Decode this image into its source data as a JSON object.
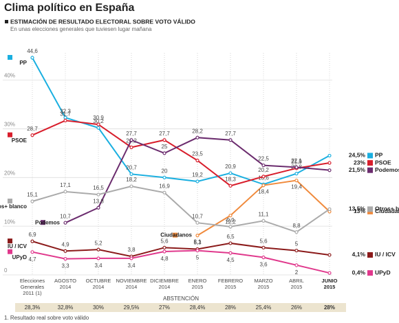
{
  "chart_data": {
    "type": "line",
    "title": "Clima político en España",
    "subtitle": "ESTIMACIÓN DE RESULTADO ELECTORAL SOBRE VOTO VÁLIDO",
    "note": "En unas elecciones generales que tuviesen lugar mañana",
    "footnote": "1. Resultado real sobre voto válido",
    "categories": [
      "Elecciones\nGenerales\n2011 (1)",
      "AGOSTO\n2014",
      "OCTUBRE\n2014",
      "NOVIEMBRE\n2014",
      "DICIEMBRE\n2014",
      "ENERO\n2015",
      "FEBRERO\n2015",
      "MARZO\n2015",
      "ABRIL\n2015",
      "JUNIO\n2015"
    ],
    "ylim": [
      0,
      47
    ],
    "yticks": [
      0,
      {
        "value": 10,
        "label": "10%"
      },
      {
        "value": 20,
        "label": "20%"
      },
      {
        "value": 30,
        "label": "30%"
      },
      {
        "value": 40,
        "label": "40%"
      }
    ],
    "grid": true,
    "series": [
      {
        "name": "PP",
        "color": "#1aafe0",
        "values": [
          44.6,
          32.3,
          30.2,
          20.7,
          20,
          19.2,
          20.9,
          18.6,
          20.8,
          24.5
        ],
        "value_labels": [
          "44,6",
          "32,3",
          "30,2",
          "20,7",
          "20",
          "19,2",
          "20,9",
          "18,6",
          "20,8",
          "24,5%"
        ]
      },
      {
        "name": "PSOE",
        "color": "#d81e2c",
        "values": [
          28.7,
          31.7,
          30.9,
          26.2,
          27.7,
          23.5,
          18.3,
          20.2,
          21.9,
          23
        ],
        "value_labels": [
          "28,7",
          "31,7",
          "30,9",
          "26,2",
          "27,7",
          "23,5",
          "18,3",
          "20,2",
          "21,9",
          "23%"
        ]
      },
      {
        "name": "Podemos",
        "color": "#6b2c6e",
        "values": [
          null,
          10.7,
          13.8,
          27.7,
          25,
          28.2,
          27.7,
          22.5,
          22.1,
          21.5
        ],
        "value_labels": [
          null,
          "10,7",
          "13,8",
          "27,7",
          "25",
          "28,2",
          "27,7",
          "22,5",
          "22,1",
          "21,5%"
        ]
      },
      {
        "name": "Ciudadanos",
        "color": "#f08a3c",
        "values": [
          null,
          null,
          null,
          null,
          null,
          8.1,
          12.2,
          18.4,
          19.4,
          13
        ],
        "value_labels": [
          null,
          null,
          null,
          null,
          null,
          "8,1",
          "12,2",
          "18,4",
          "19,4",
          "13%"
        ]
      },
      {
        "name": "Otros+ blanco",
        "color": "#aaaaaa",
        "values": [
          15.1,
          17.1,
          16.5,
          18.2,
          16.9,
          10.7,
          9.9,
          11.1,
          8.8,
          13.5
        ],
        "value_labels": [
          "15,1",
          "17,1",
          "16,5",
          "18,2",
          "16,9",
          "10,7",
          "9,9",
          "11,1",
          "8,8",
          "13,5%"
        ]
      },
      {
        "name": "IU / ICV",
        "color": "#8b1a1a",
        "values": [
          6.9,
          4.9,
          5.2,
          3.8,
          5.6,
          5.3,
          6.5,
          5.6,
          5,
          4.1
        ],
        "value_labels": [
          "6,9",
          "4,9",
          "5,2",
          "3,8",
          "5,6",
          "5,3",
          "6,5",
          "5,6",
          "5",
          "4,1%"
        ]
      },
      {
        "name": "UPyD",
        "color": "#e0388c",
        "values": [
          4.7,
          3.3,
          3.4,
          3.4,
          4.8,
          5,
          4.5,
          3.6,
          2,
          0.4
        ],
        "value_labels": [
          "4,7",
          "3,3",
          "3,4",
          "3,4",
          "4,8",
          "5",
          "4,5",
          "3,6",
          "2",
          "0,4%"
        ]
      }
    ],
    "abstention": {
      "label": "ABSTENCIÓN",
      "values": [
        28.3,
        32.8,
        30,
        29.5,
        27,
        28.4,
        28,
        25.4,
        26,
        28
      ],
      "value_labels": [
        "28,3%",
        "32,8%",
        "30%",
        "29,5%",
        "27%",
        "28,4%",
        "28%",
        "25,4%",
        "26%",
        "28%"
      ]
    }
  }
}
